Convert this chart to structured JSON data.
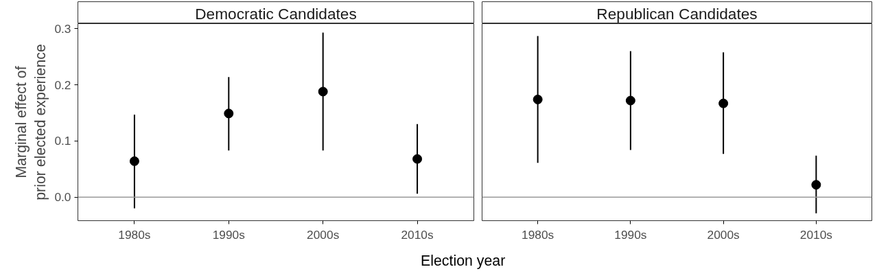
{
  "chart_data": [
    {
      "type": "scatter",
      "title": "Democratic Candidates",
      "ylabel": "Marginal effect of\nprior elected experience",
      "xlabel": "Election year",
      "categories": [
        "1980s",
        "1990s",
        "2000s",
        "2010s"
      ],
      "series": [
        {
          "color": "#000000",
          "values": [
            0.064,
            0.149,
            0.188,
            0.068
          ],
          "errors": [
            [
              -0.02,
              0.147
            ],
            [
              0.083,
              0.214
            ],
            [
              0.083,
              0.293
            ],
            [
              0.006,
              0.13
            ]
          ]
        }
      ],
      "ylim": [
        -0.042,
        0.309
      ],
      "yticks": [
        {
          "value": 0,
          "label": "0.0"
        },
        {
          "value": 0.1,
          "label": "0.1"
        },
        {
          "value": 0.2,
          "label": "0.2"
        },
        {
          "value": 0.3,
          "label": "0.3"
        }
      ],
      "ref_lines": [
        {
          "axis": "y",
          "value": 0,
          "color": "#999999"
        }
      ],
      "marker": "circle",
      "grid": false
    },
    {
      "type": "scatter",
      "title": "Republican Candidates",
      "categories": [
        "1980s",
        "1990s",
        "2000s",
        "2010s"
      ],
      "series": [
        {
          "color": "#000000",
          "values": [
            0.174,
            0.172,
            0.167,
            0.022
          ],
          "errors": [
            [
              0.061,
              0.287
            ],
            [
              0.084,
              0.26
            ],
            [
              0.077,
              0.258
            ],
            [
              -0.029,
              0.074
            ]
          ]
        }
      ],
      "ylim": [
        -0.042,
        0.309
      ],
      "ref_lines": [
        {
          "axis": "y",
          "value": 0,
          "color": "#999999"
        }
      ],
      "marker": "circle",
      "grid": false,
      "tick_labels": "x"
    }
  ]
}
